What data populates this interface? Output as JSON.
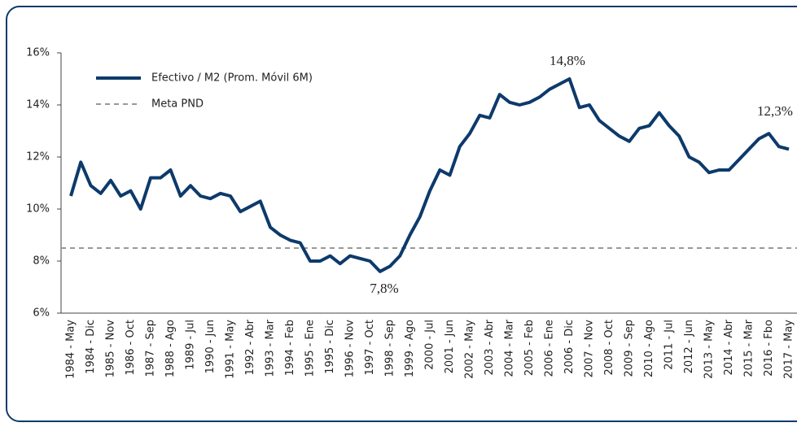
{
  "chart_data": {
    "type": "line",
    "categories": [
      "1984 - May",
      null,
      "1984 - Dic",
      null,
      "1985 - Nov",
      null,
      "1986 - Oct",
      null,
      "1987 - Sep",
      null,
      "1988 - Ago",
      null,
      "1989 - Jul",
      null,
      "1990 - Jun",
      null,
      "1991 - May",
      null,
      "1992 - Abr",
      null,
      "1993 - Mar",
      null,
      "1994 - Feb",
      null,
      "1995 - Ene",
      null,
      "1995 - Dic",
      null,
      "1996 - Nov",
      null,
      "1997 - Oct",
      null,
      "1998 - Sep",
      null,
      "1999 - Ago",
      null,
      "2000 - Jul",
      null,
      "2001 - Jun",
      null,
      "2002 - May",
      null,
      "2003 - Abr",
      null,
      "2004 - Mar",
      null,
      "2005 - Feb",
      null,
      "2006 - Ene",
      null,
      "2006 - Dic",
      null,
      "2007 - Nov",
      null,
      "2008 - Oct",
      null,
      "2009 - Sep",
      null,
      "2010 - Ago",
      null,
      "2011 - Jul",
      null,
      "2012 - Jun",
      null,
      "2013 - May",
      null,
      "2014 - Abr",
      null,
      "2015 - Mar",
      null,
      "2016 - Fbo",
      null,
      "2017 - May"
    ],
    "series": [
      {
        "name": "Efectivo / M2 (Prom. Móvil 6M)",
        "color": "#0d3a6b",
        "values": [
          10.5,
          11.8,
          10.9,
          10.6,
          11.1,
          10.5,
          10.7,
          10.0,
          11.2,
          11.2,
          11.5,
          10.5,
          10.9,
          10.5,
          10.4,
          10.6,
          10.5,
          9.9,
          10.1,
          10.3,
          9.3,
          9.0,
          8.8,
          8.7,
          8.0,
          8.0,
          8.2,
          7.9,
          8.2,
          8.1,
          8.0,
          7.6,
          7.8,
          8.2,
          9.0,
          9.7,
          10.7,
          11.5,
          11.3,
          12.4,
          12.9,
          13.6,
          13.5,
          14.4,
          14.1,
          14.0,
          14.1,
          14.3,
          14.6,
          14.8,
          15.0,
          13.9,
          14.0,
          13.4,
          13.1,
          12.8,
          12.6,
          13.1,
          13.2,
          13.7,
          13.2,
          12.8,
          12.0,
          11.8,
          11.4,
          11.5,
          11.5,
          11.9,
          12.3,
          12.7,
          12.9,
          12.4,
          12.3
        ]
      }
    ],
    "reference_lines": [
      {
        "name": "Meta PND",
        "value": 8.5,
        "color": "#999999"
      }
    ],
    "annotations": [
      "14,8%",
      "7,8%",
      "12,3%"
    ],
    "ylim": [
      6,
      16
    ],
    "yticks": [
      {
        "value": 6,
        "label": "6%"
      },
      {
        "value": 8,
        "label": "8%"
      },
      {
        "value": 10,
        "label": "10%"
      },
      {
        "value": 12,
        "label": "12%"
      },
      {
        "value": 14,
        "label": "14%"
      },
      {
        "value": 16,
        "label": "16%"
      }
    ],
    "legend": "upper left"
  }
}
